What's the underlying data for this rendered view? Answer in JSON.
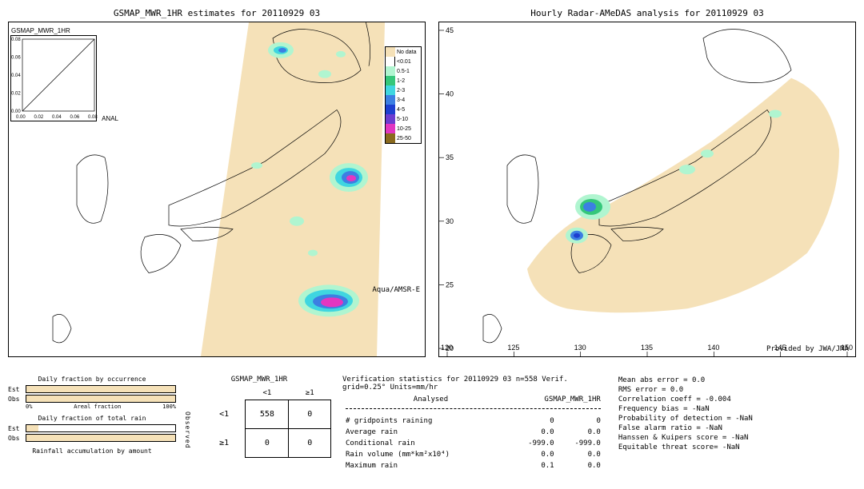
{
  "left_map": {
    "title": "GSMAP_MWR_1HR estimates for 20110929 03",
    "inset_title": "GSMAP_MWR_1HR",
    "inset_axis_label": "ANAL",
    "inset_ticks": [
      "0.00",
      "0.02",
      "0.04",
      "0.06",
      "0.08"
    ],
    "sat_label": "Aqua/AMSR-E",
    "bg_color": "#ffffff",
    "swath_color": "#f5e1b8",
    "precip_colors": {
      "light": "#b0f5d0",
      "green": "#35c77a",
      "cyan": "#3fd6e0",
      "blue1": "#3c7fe2",
      "blue2": "#1e3fd0",
      "purple": "#6c3cd0",
      "magenta": "#e236c1",
      "brown": "#8a6a1e"
    }
  },
  "right_map": {
    "title": "Hourly Radar-AMeDAS analysis for 20110929 03",
    "credit": "Provided by JWA/JMA",
    "bg_color": "#ffffff",
    "coverage_color": "#f5e1b8",
    "lat_ticks": [
      "20",
      "25",
      "30",
      "35",
      "40",
      "45"
    ],
    "lon_ticks": [
      "120",
      "125",
      "130",
      "135",
      "140",
      "145",
      "150"
    ]
  },
  "legend": {
    "items": [
      {
        "color": "#f5e1b8",
        "label": "No data"
      },
      {
        "color": "#ffffff",
        "label": "<0.01"
      },
      {
        "color": "#b0f5d0",
        "label": "0.5-1"
      },
      {
        "color": "#35c77a",
        "label": "1-2"
      },
      {
        "color": "#3fd6e0",
        "label": "2-3"
      },
      {
        "color": "#3c7fe2",
        "label": "3-4"
      },
      {
        "color": "#1e3fd0",
        "label": "4-5"
      },
      {
        "color": "#6c3cd0",
        "label": "5-10"
      },
      {
        "color": "#e236c1",
        "label": "10-25"
      },
      {
        "color": "#8a6a1e",
        "label": "25-50"
      }
    ]
  },
  "fractions": {
    "occurrence": {
      "title": "Daily fraction by occurrence",
      "est_pct": 100,
      "obs_pct": 100,
      "axis_label": "Areal fraction",
      "axis_min": "0%",
      "axis_max": "100%"
    },
    "total_rain": {
      "title": "Daily fraction of total rain",
      "est_pct": 8,
      "obs_pct": 100
    },
    "accumulation": {
      "title": "Rainfall accumulation by amount"
    },
    "bar_color": "#f5e1b8",
    "est_label": "Est",
    "obs_label": "Obs"
  },
  "contingency": {
    "title": "GSMAP_MWR_1HR",
    "col_a": "<1",
    "col_b": "≥1",
    "row_a": "<1",
    "row_b": "≥1",
    "side_label": "Observed",
    "cells": [
      [
        558,
        0
      ],
      [
        0,
        0
      ]
    ]
  },
  "stats": {
    "header": "Verification statistics for 20110929 03  n=558  Verif. grid=0.25°  Units=mm/hr",
    "col_a": "Analysed",
    "col_b": "GSMAP_MWR_1HR",
    "rows": [
      {
        "label": "# gridpoints raining",
        "a": "0",
        "b": "0"
      },
      {
        "label": "Average rain",
        "a": "0.0",
        "b": "0.0"
      },
      {
        "label": "Conditional rain",
        "a": "-999.0",
        "b": "-999.0"
      },
      {
        "label": "Rain volume (mm*km²x10⁴)",
        "a": "0.0",
        "b": "0.0"
      },
      {
        "label": "Maximum rain",
        "a": "0.1",
        "b": "0.0"
      }
    ],
    "scores": [
      "Mean abs error = 0.0",
      "RMS error = 0.0",
      "Correlation coeff = -0.004",
      "Frequency bias = -NaN",
      "Probability of detection = -NaN",
      "False alarm ratio = -NaN",
      "Hanssen & Kuipers score = -NaN",
      "Equitable threat score= -NaN"
    ]
  }
}
